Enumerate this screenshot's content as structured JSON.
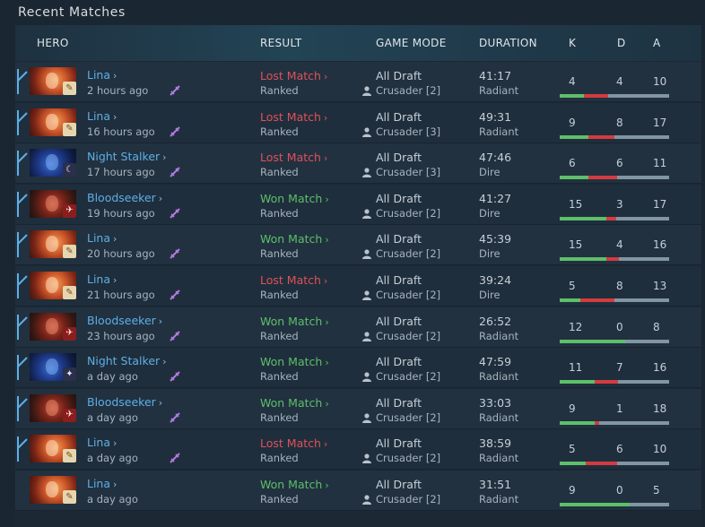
{
  "title": "Recent Matches",
  "columns": {
    "hero": "HERO",
    "result": "RESULT",
    "game_mode": "GAME MODE",
    "duration": "DURATION",
    "k": "K",
    "d": "D",
    "a": "A"
  },
  "colors": {
    "lost": "#e0505a",
    "won": "#5ebf6a",
    "hero_link": "#5eaee6",
    "party_bar": "#5eaee6",
    "kills": "#5ebf6a",
    "deaths": "#d43b40",
    "assists": "#8295a3"
  },
  "matches": [
    {
      "hero": "Lina",
      "portrait": "lina",
      "badge_icon": "scroll-icon",
      "time": "2 hours ago",
      "party": true,
      "lobby_icon": "crossed-swords-icon",
      "result": "Lost Match",
      "won": false,
      "lobby_type": "Ranked",
      "mode": "All Draft",
      "skill": "Crusader [2]",
      "duration": "41:17",
      "side": "Radiant",
      "k": 4,
      "d": 4,
      "a": 10
    },
    {
      "hero": "Lina",
      "portrait": "lina",
      "badge_icon": "scroll-icon",
      "time": "16 hours ago",
      "party": true,
      "lobby_icon": "crossed-swords-icon",
      "result": "Lost Match",
      "won": false,
      "lobby_type": "Ranked",
      "mode": "All Draft",
      "skill": "Crusader [3]",
      "duration": "49:31",
      "side": "Radiant",
      "k": 9,
      "d": 8,
      "a": 17
    },
    {
      "hero": "Night Stalker",
      "portrait": "ns",
      "badge_icon": "moon-icon",
      "time": "17 hours ago",
      "party": true,
      "lobby_icon": "crossed-swords-icon",
      "result": "Lost Match",
      "won": false,
      "lobby_type": "Ranked",
      "mode": "All Draft",
      "skill": "Crusader [3]",
      "duration": "47:46",
      "side": "Dire",
      "k": 6,
      "d": 6,
      "a": 11
    },
    {
      "hero": "Bloodseeker",
      "portrait": "bs",
      "badge_icon": "running-icon",
      "time": "19 hours ago",
      "party": true,
      "lobby_icon": "crossed-swords-icon",
      "result": "Won Match",
      "won": true,
      "lobby_type": "Ranked",
      "mode": "All Draft",
      "skill": "Crusader [2]",
      "duration": "41:27",
      "side": "Dire",
      "k": 15,
      "d": 3,
      "a": 17
    },
    {
      "hero": "Lina",
      "portrait": "lina",
      "badge_icon": "scroll-icon",
      "time": "20 hours ago",
      "party": true,
      "lobby_icon": "crossed-swords-icon",
      "result": "Won Match",
      "won": true,
      "lobby_type": "Ranked",
      "mode": "All Draft",
      "skill": "Crusader [2]",
      "duration": "45:39",
      "side": "Dire",
      "k": 15,
      "d": 4,
      "a": 16
    },
    {
      "hero": "Lina",
      "portrait": "lina",
      "badge_icon": "scroll-icon",
      "time": "21 hours ago",
      "party": true,
      "lobby_icon": "crossed-swords-icon",
      "result": "Lost Match",
      "won": false,
      "lobby_type": "Ranked",
      "mode": "All Draft",
      "skill": "Crusader [2]",
      "duration": "39:24",
      "side": "Dire",
      "k": 5,
      "d": 8,
      "a": 13
    },
    {
      "hero": "Bloodseeker",
      "portrait": "bs",
      "badge_icon": "running-icon",
      "time": "23 hours ago",
      "party": true,
      "lobby_icon": "crossed-swords-icon",
      "result": "Won Match",
      "won": true,
      "lobby_type": "Ranked",
      "mode": "All Draft",
      "skill": "Crusader [2]",
      "duration": "26:52",
      "side": "Radiant",
      "k": 12,
      "d": 0,
      "a": 8
    },
    {
      "hero": "Night Stalker",
      "portrait": "ns",
      "badge_icon": "claw-icon",
      "time": "a day ago",
      "party": true,
      "lobby_icon": "crossed-swords-icon",
      "result": "Won Match",
      "won": true,
      "lobby_type": "Ranked",
      "mode": "All Draft",
      "skill": "Crusader [2]",
      "duration": "47:59",
      "side": "Radiant",
      "k": 11,
      "d": 7,
      "a": 16
    },
    {
      "hero": "Bloodseeker",
      "portrait": "bs",
      "badge_icon": "running-icon",
      "time": "a day ago",
      "party": true,
      "lobby_icon": "crossed-swords-icon",
      "result": "Won Match",
      "won": true,
      "lobby_type": "Ranked",
      "mode": "All Draft",
      "skill": "Crusader [2]",
      "duration": "33:03",
      "side": "Radiant",
      "k": 9,
      "d": 1,
      "a": 18
    },
    {
      "hero": "Lina",
      "portrait": "lina",
      "badge_icon": "scroll-icon",
      "time": "a day ago",
      "party": true,
      "lobby_icon": "crossed-swords-icon",
      "result": "Lost Match",
      "won": false,
      "lobby_type": "Ranked",
      "mode": "All Draft",
      "skill": "Crusader [2]",
      "duration": "38:59",
      "side": "Radiant",
      "k": 5,
      "d": 6,
      "a": 10
    },
    {
      "hero": "Lina",
      "portrait": "lina",
      "badge_icon": "scroll-icon",
      "time": "a day ago",
      "party": false,
      "lobby_icon": "",
      "result": "Won Match",
      "won": true,
      "lobby_type": "Ranked",
      "mode": "All Draft",
      "skill": "Crusader [2]",
      "duration": "31:51",
      "side": "Radiant",
      "k": 9,
      "d": 0,
      "a": 5
    }
  ]
}
